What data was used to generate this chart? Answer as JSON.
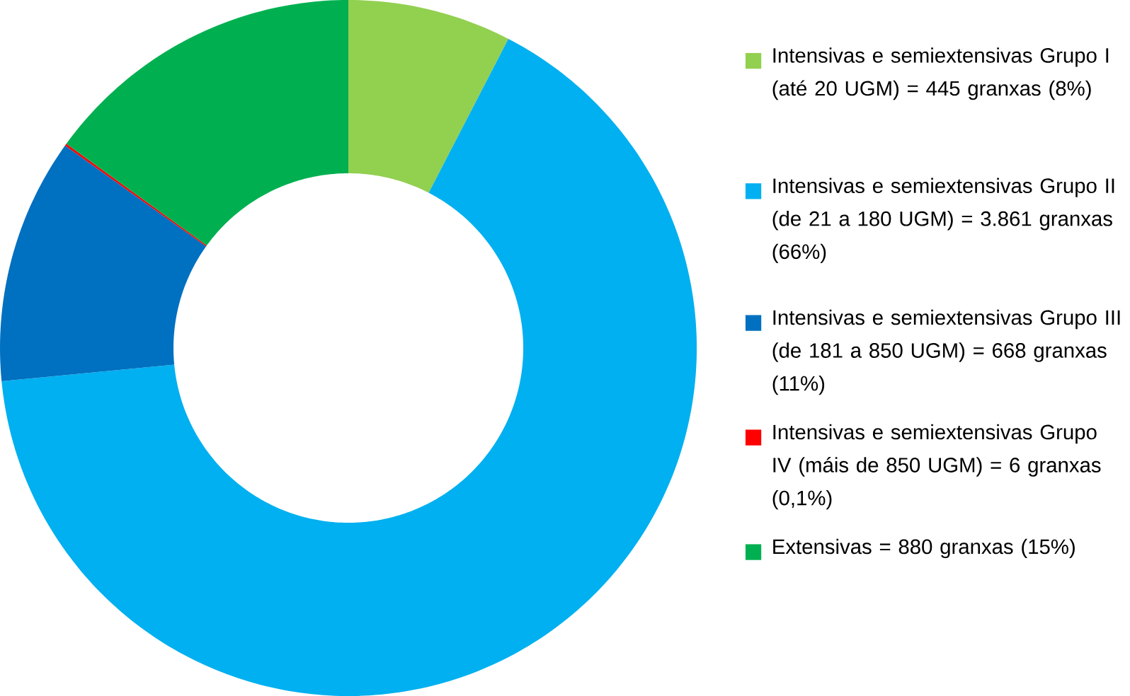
{
  "chart_data": {
    "type": "donut",
    "categories": [
      "Intensivas e semiextensivas Grupo I (até 20 UGM) = 445 granxas (8%)",
      "Intensivas e semiextensivas Grupo II (de 21 a 180 UGM) = 3.861 granxas (66%)",
      "Intensivas e semiextensivas Grupo III (de 181 a 850 UGM) = 668 granxas (11%)",
      "Intensivas e semiextensivas Grupo IV (máis de 850 UGM) = 6 granxas (0,1%)",
      "Extensivas = 880 granxas (15%)"
    ],
    "values": [
      445,
      3861,
      668,
      6,
      880
    ],
    "colors": [
      "#92d050",
      "#00b0f0",
      "#0070c0",
      "#ff0000",
      "#00b050"
    ],
    "legend": "right"
  }
}
